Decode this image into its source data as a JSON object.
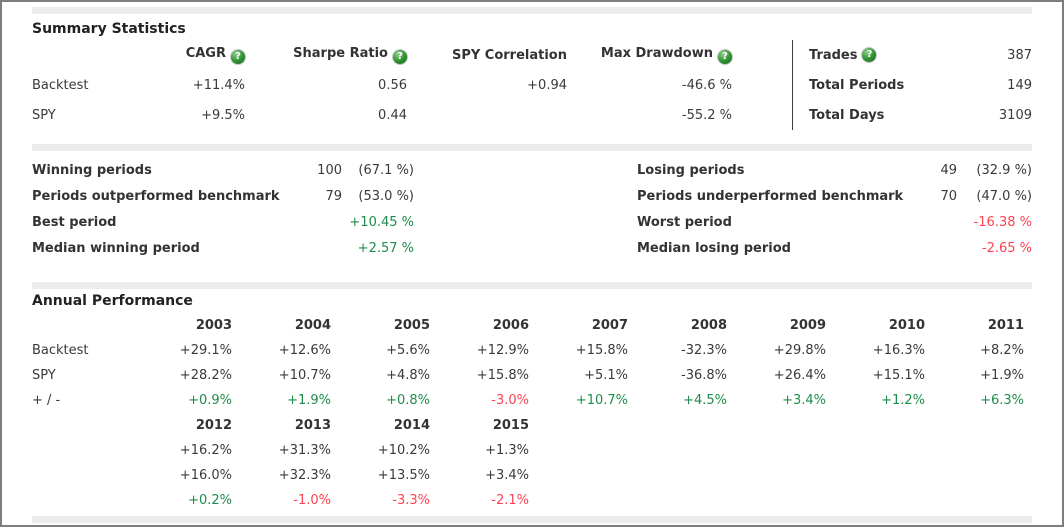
{
  "colors": {
    "positive_green": "#1e8c4a",
    "negative_red": "#fb4353",
    "label_text": "#333333",
    "value_text": "#3a3a3a",
    "divider_bar": "#ececec",
    "outer_border": "#7e7e7e",
    "help_icon_green": "#2e8f2e"
  },
  "summary": {
    "title": "Summary Statistics",
    "columns": [
      {
        "label": "CAGR",
        "help": true
      },
      {
        "label": "Sharpe Ratio",
        "help": true
      },
      {
        "label": "SPY Correlation",
        "help": false
      },
      {
        "label": "Max Drawdown",
        "help": true
      }
    ],
    "rows": [
      {
        "label": "Backtest",
        "values": [
          "+11.4%",
          "0.56",
          "+0.94",
          "-46.6 %"
        ]
      },
      {
        "label": "SPY",
        "values": [
          "+9.5%",
          "0.44",
          "",
          "-55.2 %"
        ]
      }
    ],
    "side_rows": [
      {
        "label": "Trades",
        "help": true,
        "value": "387"
      },
      {
        "label": "Total Periods",
        "help": false,
        "value": "149"
      },
      {
        "label": "Total Days",
        "help": false,
        "value": "3109"
      }
    ]
  },
  "periods": {
    "left": [
      {
        "label": "Winning periods",
        "count": "100",
        "pct": "(67.1 %)"
      },
      {
        "label": "Periods outperformed benchmark",
        "count": "79",
        "pct": "(53.0 %)"
      },
      {
        "label": "Best period",
        "value": "+10.45 %"
      },
      {
        "label": "Median winning period",
        "value": "+2.57 %"
      }
    ],
    "right": [
      {
        "label": "Losing periods",
        "count": "49",
        "pct": "(32.9 %)"
      },
      {
        "label": "Periods underperformed benchmark",
        "count": "70",
        "pct": "(47.0 %)"
      },
      {
        "label": "Worst period",
        "value": "-16.38 %"
      },
      {
        "label": "Median losing period",
        "value": "-2.65 %"
      }
    ]
  },
  "annual": {
    "title": "Annual Performance",
    "row_labels": [
      "Backtest",
      "SPY",
      "+ / -"
    ],
    "groups": [
      {
        "show_labels": true,
        "years": [
          "2003",
          "2004",
          "2005",
          "2006",
          "2007",
          "2008",
          "2009",
          "2010",
          "2011"
        ],
        "backtest": [
          "+29.1%",
          "+12.6%",
          "+5.6%",
          "+12.9%",
          "+15.8%",
          "-32.3%",
          "+29.8%",
          "+16.3%",
          "+8.2%"
        ],
        "spy": [
          "+28.2%",
          "+10.7%",
          "+4.8%",
          "+15.8%",
          "+5.1%",
          "-36.8%",
          "+26.4%",
          "+15.1%",
          "+1.9%"
        ],
        "diff": [
          "+0.9%",
          "+1.9%",
          "+0.8%",
          "-3.0%",
          "+10.7%",
          "+4.5%",
          "+3.4%",
          "+1.2%",
          "+6.3%"
        ]
      },
      {
        "show_labels": false,
        "years": [
          "2012",
          "2013",
          "2014",
          "2015"
        ],
        "backtest": [
          "+16.2%",
          "+31.3%",
          "+10.2%",
          "+1.3%"
        ],
        "spy": [
          "+16.0%",
          "+32.3%",
          "+13.5%",
          "+3.4%"
        ],
        "diff": [
          "+0.2%",
          "-1.0%",
          "-3.3%",
          "-2.1%"
        ]
      }
    ]
  }
}
